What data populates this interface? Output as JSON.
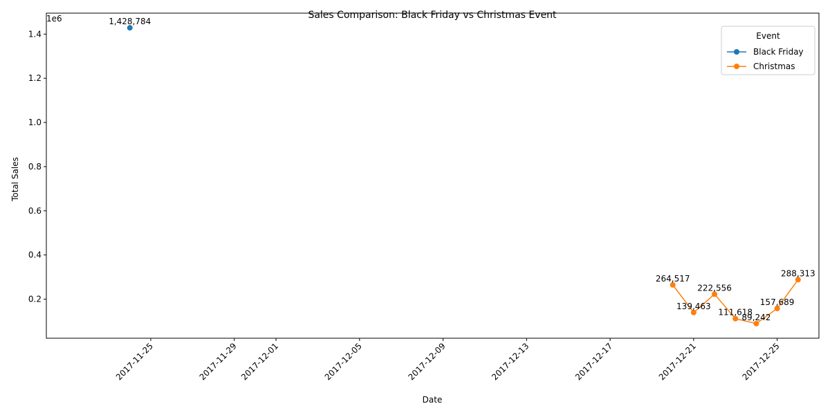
{
  "chart_data": {
    "type": "line",
    "title": "Sales Comparison: Black Friday vs Christmas Event",
    "xlabel": "Date",
    "ylabel": "Total Sales",
    "y_offset_label": "1e6",
    "x_ticks": [
      "2017-11-25",
      "2017-11-29",
      "2017-12-01",
      "2017-12-05",
      "2017-12-09",
      "2017-12-13",
      "2017-12-17",
      "2017-12-21",
      "2017-12-25"
    ],
    "y_ticks": [
      "0.2",
      "0.4",
      "0.6",
      "0.8",
      "1.0",
      "1.2",
      "1.4"
    ],
    "y_tick_values": [
      200000,
      400000,
      600000,
      800000,
      1000000,
      1200000,
      1400000
    ],
    "xlim": [
      "2017-11-20",
      "2017-12-27"
    ],
    "ylim": [
      23000,
      1495000
    ],
    "grid": false,
    "legend": {
      "title": "Event",
      "position": "top-right"
    },
    "series": [
      {
        "name": "Black Friday",
        "color": "#1f77b4",
        "points": [
          {
            "date": "2017-11-24",
            "value": 1428784,
            "label": "1,428,784"
          }
        ]
      },
      {
        "name": "Christmas",
        "color": "#ff7f0e",
        "points": [
          {
            "date": "2017-12-20",
            "value": 264517,
            "label": "264,517"
          },
          {
            "date": "2017-12-21",
            "value": 139463,
            "label": "139,463"
          },
          {
            "date": "2017-12-22",
            "value": 222556,
            "label": "222,556"
          },
          {
            "date": "2017-12-23",
            "value": 111618,
            "label": "111,618"
          },
          {
            "date": "2017-12-24",
            "value": 89242,
            "label": "89,242"
          },
          {
            "date": "2017-12-25",
            "value": 157689,
            "label": "157,689"
          },
          {
            "date": "2017-12-26",
            "value": 288313,
            "label": "288,313"
          }
        ]
      }
    ]
  }
}
